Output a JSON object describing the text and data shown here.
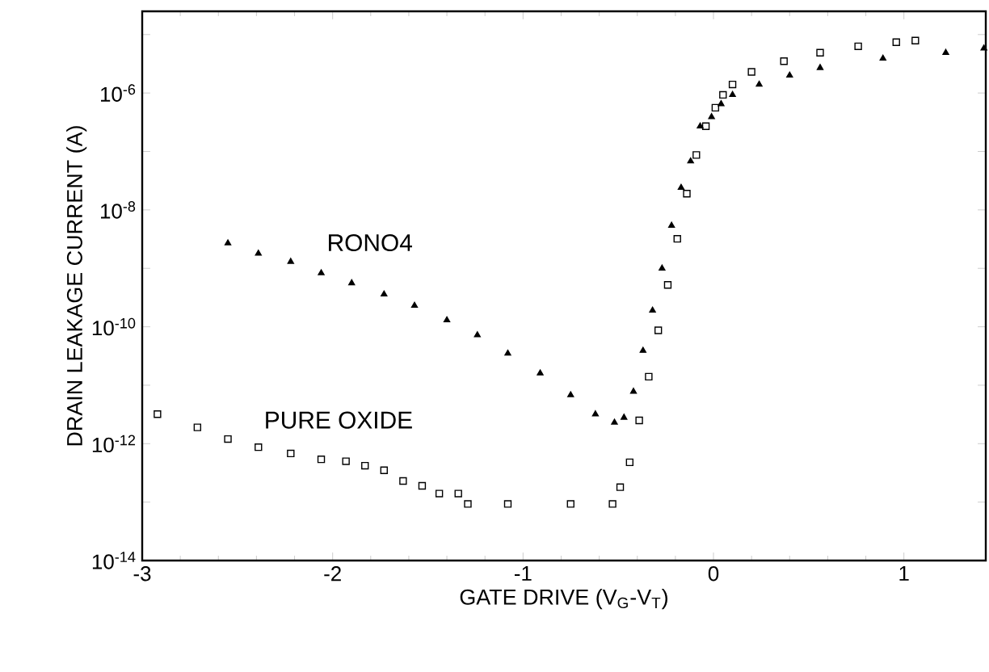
{
  "chart_data": {
    "type": "scatter",
    "xlabel": "GATE DRIVE  (V$_{G}$-V$_{T}$)",
    "ylabel": "DRAIN LEAKAGE CURRENT  (A)",
    "log": "y",
    "xlim": [
      -3,
      1.43
    ],
    "ylim": [
      1e-14,
      2.5e-05
    ],
    "xticks": [
      -3,
      -2,
      -1,
      0,
      1
    ],
    "yticks": [
      {
        "value": 1e-14,
        "label": "10$^{-14}$"
      },
      {
        "value": 1e-13,
        "label": null
      },
      {
        "value": 1e-12,
        "label": "10$^{-12}$"
      },
      {
        "value": 1e-11,
        "label": null
      },
      {
        "value": 1e-10,
        "label": "10$^{-10}$"
      },
      {
        "value": 1e-09,
        "label": null
      },
      {
        "value": 1e-08,
        "label": "10$^{-8}$"
      },
      {
        "value": 1e-07,
        "label": null
      },
      {
        "value": 1e-06,
        "label": "10$^{-6}$"
      },
      {
        "value": 1e-05,
        "label": null
      }
    ],
    "grid": false,
    "legend": false,
    "series": [
      {
        "name": "RONO4",
        "color": "#000000",
        "marker": "triangle",
        "x": [
          -2.55,
          -2.39,
          -2.22,
          -2.06,
          -1.9,
          -1.73,
          -1.57,
          -1.4,
          -1.24,
          -1.08,
          -0.91,
          -0.75,
          -0.62,
          -0.52,
          -0.47,
          -0.42,
          -0.37,
          -0.32,
          -0.27,
          -0.22,
          -0.17,
          -0.12,
          -0.07,
          -0.01,
          0.04,
          0.1,
          0.24,
          0.4,
          0.56,
          0.89,
          1.22,
          1.42
        ],
        "values": [
          2.7e-09,
          1.8e-09,
          1.3e-09,
          8.3e-10,
          5.6e-10,
          3.6e-10,
          2.3e-10,
          1.3e-10,
          7.2e-11,
          3.5e-11,
          1.6e-11,
          6.8e-12,
          3.2e-12,
          2.3e-12,
          2.8e-12,
          7.8e-12,
          3.9e-11,
          1.9e-10,
          1e-09,
          5.4e-09,
          2.4e-08,
          6.8e-08,
          2.7e-07,
          3.9e-07,
          6.5e-07,
          9.3e-07,
          1.4e-06,
          2e-06,
          2.7e-06,
          3.9e-06,
          4.9e-06,
          5.8e-06
        ]
      },
      {
        "name": "PURE OXIDE",
        "color": "#000000",
        "marker": "square",
        "x": [
          -2.92,
          -2.71,
          -2.55,
          -2.39,
          -2.22,
          -2.06,
          -1.93,
          -1.83,
          -1.73,
          -1.63,
          -1.53,
          -1.44,
          -1.34,
          -1.29,
          -1.08,
          -0.75,
          -0.53,
          -0.49,
          -0.44,
          -0.39,
          -0.34,
          -0.29,
          -0.24,
          -0.19,
          -0.14,
          -0.09,
          -0.04,
          0.01,
          0.05,
          0.1,
          0.2,
          0.37,
          0.56,
          0.76,
          0.96,
          1.06
        ],
        "values": [
          3.2e-12,
          1.9e-12,
          1.2e-12,
          8.7e-13,
          6.8e-13,
          5.4e-13,
          5e-13,
          4.2e-13,
          3.5e-13,
          2.3e-13,
          1.9e-13,
          1.4e-13,
          1.4e-13,
          9.3e-14,
          9.3e-14,
          9.3e-14,
          9.3e-14,
          1.8e-13,
          4.8e-13,
          2.5e-12,
          1.4e-11,
          8.7e-11,
          5.2e-10,
          3.2e-09,
          1.9e-08,
          8.7e-08,
          2.7e-07,
          5.6e-07,
          9.3e-07,
          1.4e-06,
          2.3e-06,
          3.5e-06,
          4.9e-06,
          6.3e-06,
          7.4e-06,
          7.9e-06
        ]
      }
    ]
  }
}
